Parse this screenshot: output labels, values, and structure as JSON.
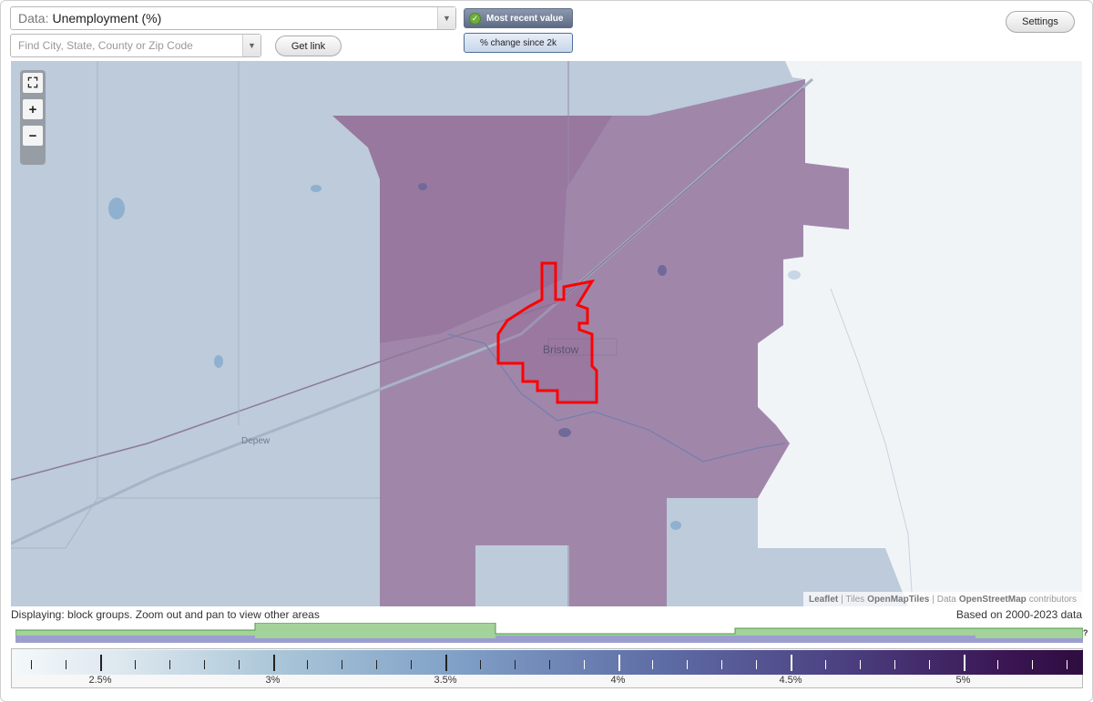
{
  "header": {
    "data_label": "Data:",
    "data_value": "Unemployment (%)",
    "search_placeholder": "Find City, State, County or Zip Code",
    "get_link": "Get link",
    "most_recent": "Most recent value",
    "change_since": "% change since 2k",
    "settings": "Settings"
  },
  "map": {
    "city_label": "Bristow",
    "town_label": "Depew",
    "attribution": {
      "leaflet": "Leaflet",
      "sep1": "| Tiles",
      "tiles": "OpenMapTiles",
      "sep2": "| Data",
      "data": "OpenStreetMap",
      "contrib": "contributors"
    }
  },
  "footer": {
    "displaying": "Displaying: block groups. Zoom out and pan to view other areas",
    "based_on": "Based on 2000-2023 data",
    "question": "?"
  },
  "legend": {
    "labels": [
      "2.5%",
      "3%",
      "3.5%",
      "4%",
      "4.5%",
      "5%"
    ]
  },
  "colors": {
    "selected_outline": "#ff0000",
    "region_fill": "#8e5d8c",
    "accent_button": "#5d6b85"
  }
}
